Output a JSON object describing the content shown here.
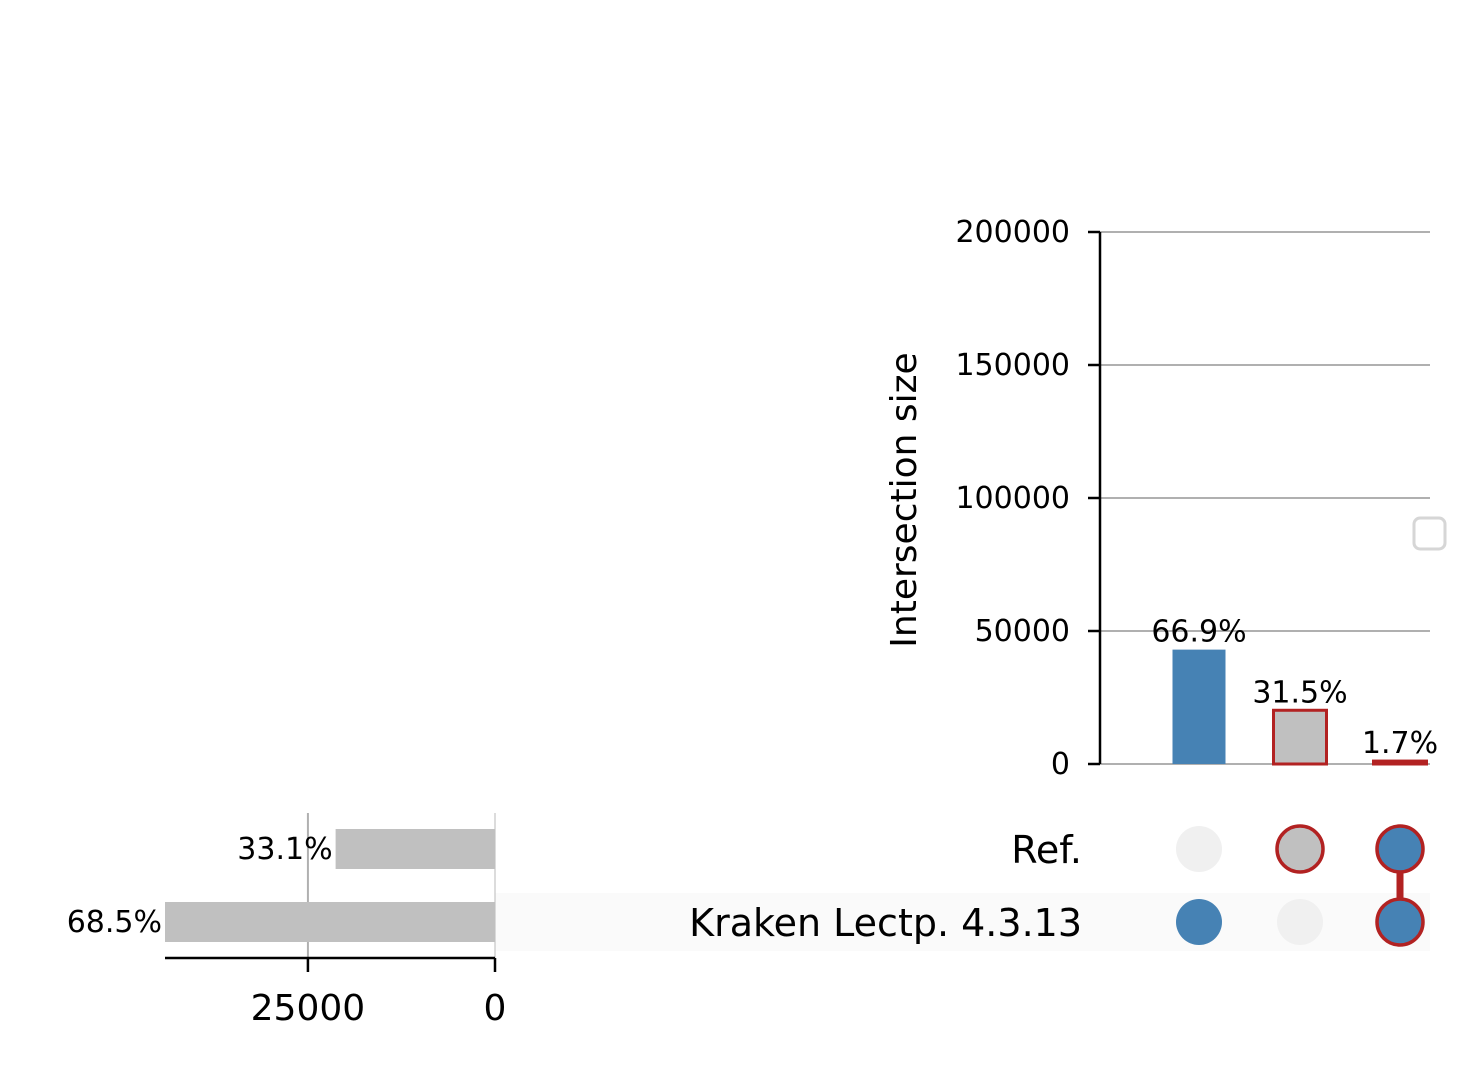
{
  "chart_data": {
    "type": "upset",
    "intersection_axis": {
      "label": "Intersection size",
      "ylim": [
        0,
        200000
      ],
      "ticks": [
        0,
        50000,
        100000,
        150000,
        200000
      ],
      "grid": true
    },
    "intersections": [
      {
        "sets": [
          "Kraken Lectp. 4.3.13"
        ],
        "value": 43000,
        "label": "66.9%",
        "fill": "#4682b4",
        "edge": null
      },
      {
        "sets": [
          "Ref."
        ],
        "value": 20200,
        "label": "31.5%",
        "fill": "#c0c0c0",
        "edge": "#b22222"
      },
      {
        "sets": [
          "Ref.",
          "Kraken Lectp. 4.3.13"
        ],
        "value": 1100,
        "label": "1.7%",
        "fill": "#4682b4",
        "edge": "#b22222"
      }
    ],
    "sets": [
      {
        "name": "Ref.",
        "size": 21300,
        "label": "33.1%"
      },
      {
        "name": "Kraken Lectp. 4.3.13",
        "size": 44100,
        "label": "68.5%"
      }
    ],
    "set_size_axis": {
      "ticks": [
        25000,
        0
      ],
      "xlim": [
        0,
        44100
      ],
      "reversed": true
    },
    "colors": {
      "blue": "#4682b4",
      "grey": "#c0c0c0",
      "red": "#b22222",
      "inactive_dot": "#f0f0f0",
      "grid": "#b0b0b0",
      "stripe": "#fafafa"
    },
    "legend": {
      "placement": "right",
      "entries": []
    }
  }
}
